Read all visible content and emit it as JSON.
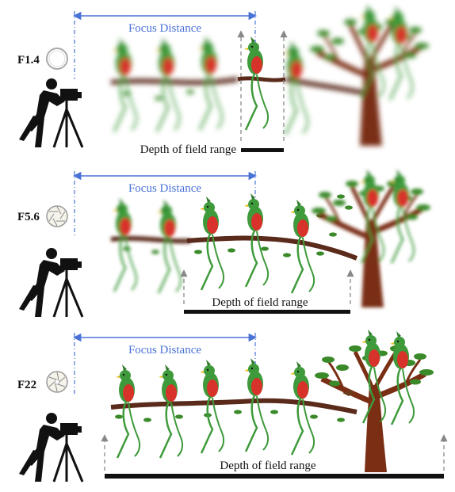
{
  "colors": {
    "focus_line": "#4a72d6",
    "focus_text": "#4a72d6",
    "branch": "#5a2a1a",
    "trunk": "#7a2e14",
    "leaf": "#3a8a2a",
    "bird_green": "#3e9a3a",
    "bird_red": "#d8332a",
    "bird_beak": "#e8c020",
    "dof_bar": "#111111",
    "arrow_gray": "#888888"
  },
  "icons": [
    "camera-on-tripod-icon",
    "aperture-icon",
    "quetzal-bird-icon",
    "tree-icon"
  ],
  "panels": [
    {
      "aperture": "F1.4",
      "focus_label": "Focus Distance",
      "dof_label": "Depth of field range",
      "blur_before": 3,
      "blur_after": 4,
      "tree_blurred": true
    },
    {
      "aperture": "F5.6",
      "focus_label": "Focus Distance",
      "dof_label": "Depth of field range",
      "blur_before": 2,
      "blur_after": 0,
      "tree_blurred": true
    },
    {
      "aperture": "F22",
      "focus_label": "Focus Distance",
      "dof_label": "Depth of field range",
      "blur_before": 0,
      "blur_after": 0,
      "tree_blurred": false
    }
  ]
}
